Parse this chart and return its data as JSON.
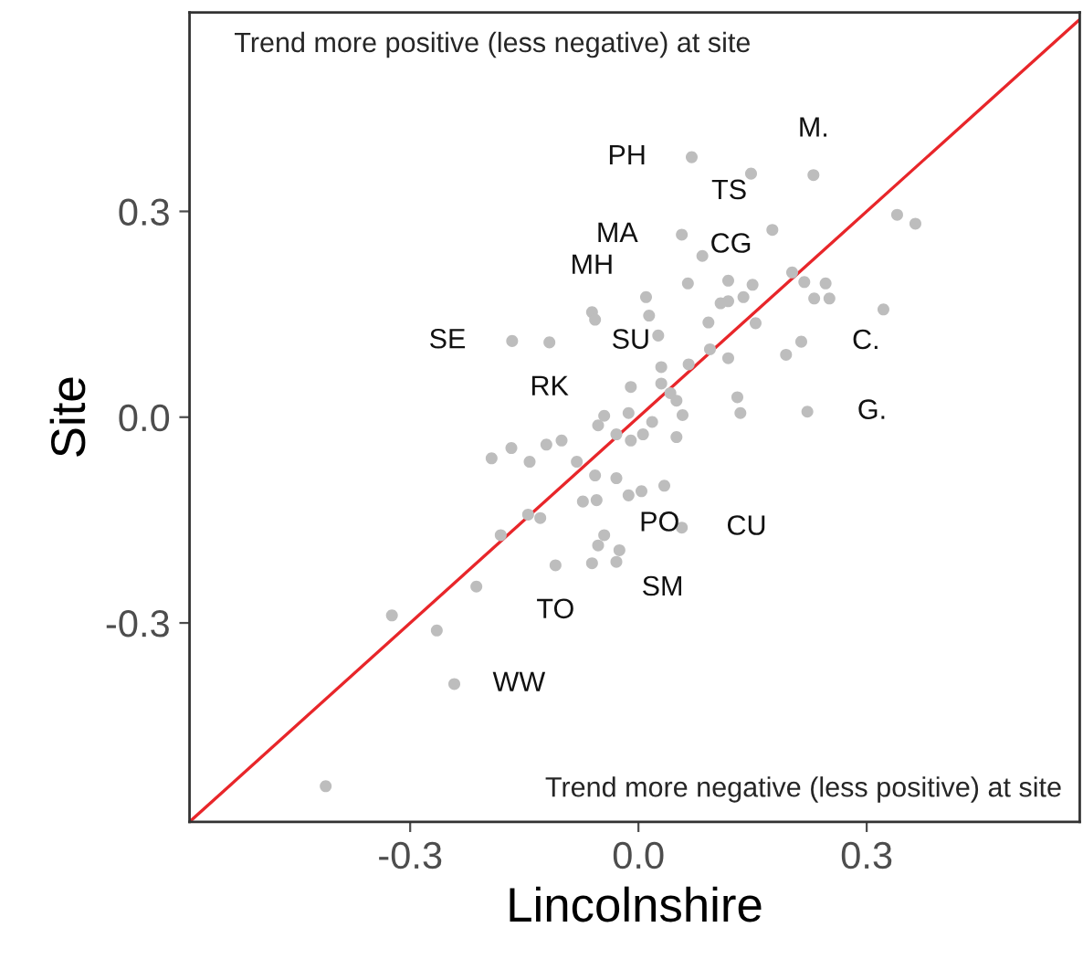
{
  "chart_data": {
    "type": "scatter",
    "xlabel": "Lincolnshire",
    "ylabel": "Site",
    "xlim": [
      -0.59,
      0.58
    ],
    "ylim": [
      -0.59,
      0.59
    ],
    "xticks": [
      -0.3,
      {
        "value": 0,
        "label": "0.0"
      },
      0.3
    ],
    "yticks": [
      -0.3,
      {
        "value": 0,
        "label": "0.0"
      },
      0.3
    ],
    "grid": false,
    "marker": "circle",
    "series": [
      {
        "color": "#bdbdbd",
        "value_labels": [
          "PH",
          null,
          "M.",
          "TS",
          "MA",
          null,
          null,
          null,
          null,
          null,
          null,
          null,
          null,
          null,
          null,
          null,
          null,
          null,
          "CG",
          null,
          null,
          null,
          "MH",
          null,
          null,
          null,
          "C.",
          null,
          "SE",
          "RK",
          null,
          null,
          null,
          null,
          null,
          "SU",
          null,
          null,
          null,
          null,
          "G.",
          null,
          null,
          null,
          null,
          null,
          null,
          null,
          null,
          null,
          null,
          null,
          null,
          null,
          null,
          null,
          null,
          null,
          null,
          null,
          null,
          null,
          null,
          null,
          null,
          null,
          null,
          null,
          null,
          "CU",
          "SM",
          "TO",
          null,
          "PO",
          null,
          null,
          null,
          "WW",
          null
        ],
        "x": [
          0.07,
          0.148,
          0.23,
          0.176,
          0.057,
          0.084,
          0.34,
          0.364,
          0.202,
          0.218,
          0.246,
          0.231,
          0.251,
          0.118,
          0.15,
          0.138,
          0.118,
          0.108,
          0.065,
          0.154,
          0.092,
          0.01,
          -0.061,
          -0.057,
          0.014,
          0.322,
          0.214,
          0.194,
          -0.166,
          -0.117,
          0.026,
          0.094,
          0.118,
          0.066,
          0.03,
          -0.01,
          0.03,
          0.042,
          0.05,
          0.13,
          0.222,
          -0.045,
          -0.013,
          0.058,
          0.134,
          0.018,
          -0.193,
          -0.167,
          -0.143,
          -0.121,
          -0.101,
          -0.081,
          -0.053,
          -0.029,
          -0.01,
          0.006,
          0.05,
          -0.057,
          -0.029,
          -0.013,
          0.004,
          0.034,
          -0.073,
          -0.055,
          -0.145,
          -0.129,
          -0.181,
          -0.045,
          -0.053,
          0.057,
          -0.025,
          -0.109,
          -0.061,
          -0.029,
          -0.213,
          -0.324,
          -0.265,
          -0.242,
          -0.411
        ],
        "values": [
          0.379,
          0.355,
          0.353,
          0.273,
          0.266,
          0.235,
          0.295,
          0.282,
          0.211,
          0.197,
          0.195,
          0.173,
          0.173,
          0.199,
          0.193,
          0.175,
          0.169,
          0.166,
          0.195,
          0.137,
          0.138,
          0.175,
          0.153,
          0.142,
          0.148,
          0.157,
          0.11,
          0.091,
          0.111,
          0.109,
          0.119,
          0.099,
          0.086,
          0.077,
          0.073,
          0.044,
          0.049,
          0.035,
          0.024,
          0.029,
          0.008,
          0.002,
          0.006,
          0.003,
          0.006,
          -0.007,
          -0.06,
          -0.045,
          -0.065,
          -0.04,
          -0.034,
          -0.065,
          -0.012,
          -0.025,
          -0.034,
          -0.025,
          -0.029,
          -0.085,
          -0.089,
          -0.114,
          -0.108,
          -0.1,
          -0.123,
          -0.121,
          -0.142,
          -0.147,
          -0.172,
          -0.172,
          -0.187,
          -0.161,
          -0.194,
          -0.216,
          -0.213,
          -0.211,
          -0.247,
          -0.289,
          -0.311,
          -0.389,
          -0.538
        ]
      },
      {
        "type": "line",
        "color": "#e8262a",
        "line_style": "solid",
        "marker": "none",
        "x": [
          -0.59,
          0.58
        ],
        "values": [
          -0.59,
          0.58
        ]
      }
    ],
    "annotations": [
      "Trend more positive (less negative) at site",
      "Trend more negative (less positive) at site"
    ]
  }
}
